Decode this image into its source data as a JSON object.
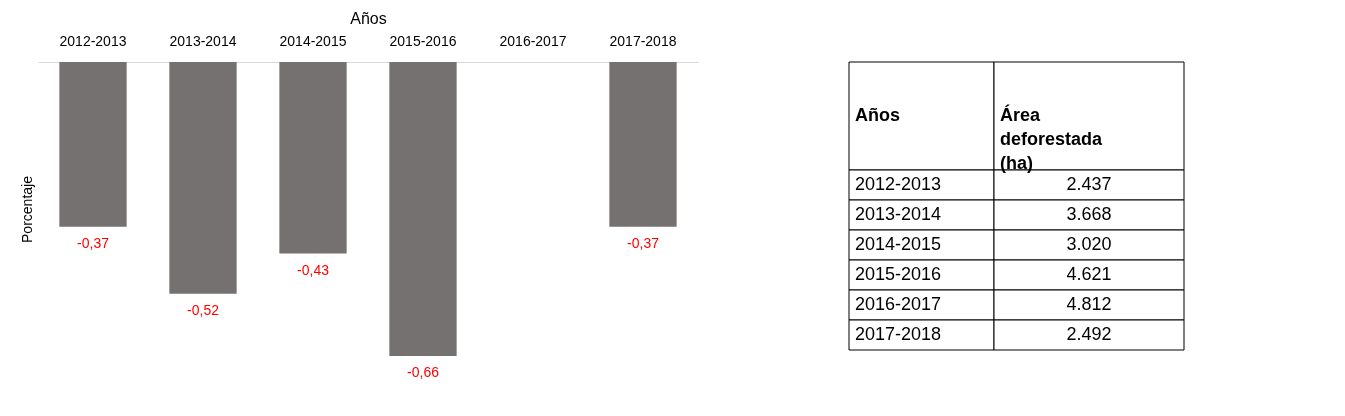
{
  "chart_data": [
    {
      "type": "bar",
      "xlabel": "Años",
      "ylabel": "Porcentaje",
      "categories": [
        "2012-2013",
        "2013-2014",
        "2014-2015",
        "2015-2016",
        "2016-2017",
        "2017-2018"
      ],
      "values": [
        -0.37,
        -0.52,
        -0.43,
        -0.66,
        null,
        -0.37
      ],
      "value_labels": [
        "-0,37",
        "-0,52",
        "-0,43",
        "-0,66",
        null,
        "-0,37"
      ],
      "color": "#767171"
    },
    {
      "type": "other",
      "xlabel": "Años",
      "ylabel": "Área deforestada (ha)",
      "categories": [
        "2012-2013",
        "2013-2014",
        "2014-2015",
        "2015-2016",
        "2016-2017",
        "2017-2018"
      ],
      "values": [
        2437,
        3668,
        3020,
        4621,
        4812,
        2492
      ],
      "value_labels": [
        "2.437",
        "3.668",
        "3.020",
        "4.621",
        "4.812",
        "2.492"
      ]
    }
  ]
}
